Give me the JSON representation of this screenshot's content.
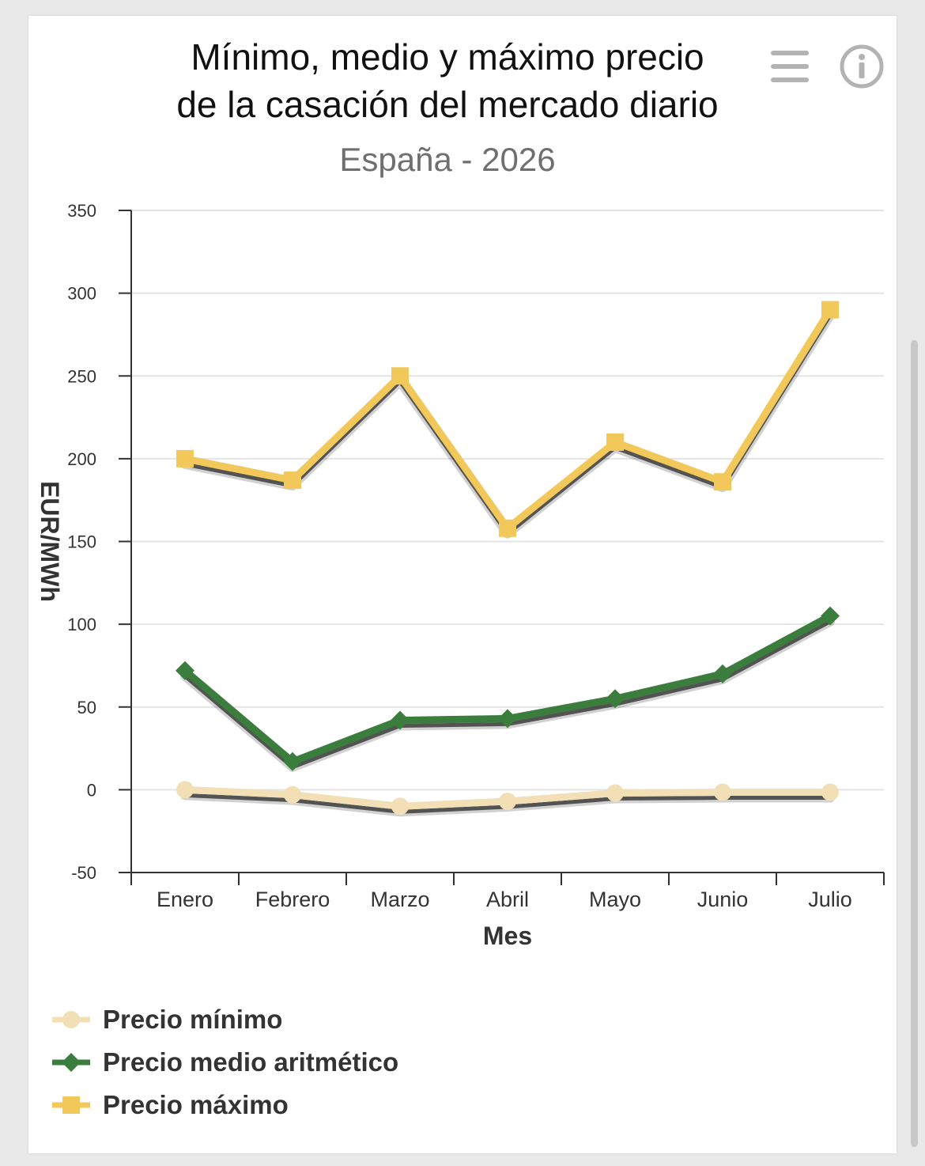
{
  "chart_data": {
    "type": "line",
    "title_lines": [
      "Mínimo, medio y máximo precio",
      "de la casación del mercado diario"
    ],
    "subtitle": "España - 2026",
    "xlabel": "Mes",
    "ylabel": "EUR/MWh",
    "categories": [
      "Enero",
      "Febrero",
      "Marzo",
      "Abril",
      "Mayo",
      "Junio",
      "Julio"
    ],
    "ylim": [
      -50,
      350
    ],
    "yticks": [
      -50,
      0,
      50,
      100,
      150,
      200,
      250,
      300,
      350
    ],
    "grid": true,
    "legend_position": "bottom-left",
    "series": [
      {
        "name": "Precio mínimo",
        "values": [
          0,
          -3,
          -10,
          -7,
          -2,
          -1.5,
          -1.5
        ],
        "color": "#f2dfb5",
        "marker": "circle"
      },
      {
        "name": "Precio medio aritmético",
        "values": [
          72,
          17,
          42,
          43,
          55,
          70,
          105
        ],
        "color": "#3a7d3c",
        "marker": "diamond"
      },
      {
        "name": "Precio máximo",
        "values": [
          200,
          187,
          250,
          158,
          210,
          186,
          290
        ],
        "color": "#f2c85b",
        "marker": "square"
      }
    ]
  },
  "toolbar": {
    "menu_icon": "hamburger-menu-icon",
    "info_icon": "info-icon"
  }
}
